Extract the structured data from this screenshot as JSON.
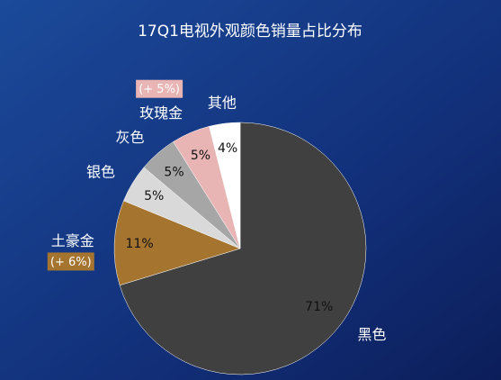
{
  "chart_data": {
    "type": "pie",
    "title": "17Q1电视外观颜色销量占比分布",
    "categories": [
      "黑色",
      "土豪金",
      "银色",
      "灰色",
      "玫瑰金",
      "其他"
    ],
    "values": [
      71,
      11,
      5,
      5,
      5,
      4
    ],
    "value_labels": [
      "71%",
      "11%",
      "5%",
      "5%",
      "5%",
      "4%"
    ],
    "colors": [
      "#404040",
      "#a5742f",
      "#d9d9d9",
      "#a6a6a6",
      "#e8b4b4",
      "#ffffff"
    ],
    "annotations": [
      {
        "text": "(+ 6%)",
        "category": "土豪金",
        "color": "#a5742f"
      },
      {
        "text": "(+ 5%)",
        "category": "玫瑰金",
        "color": "#e8b4b4"
      }
    ]
  }
}
